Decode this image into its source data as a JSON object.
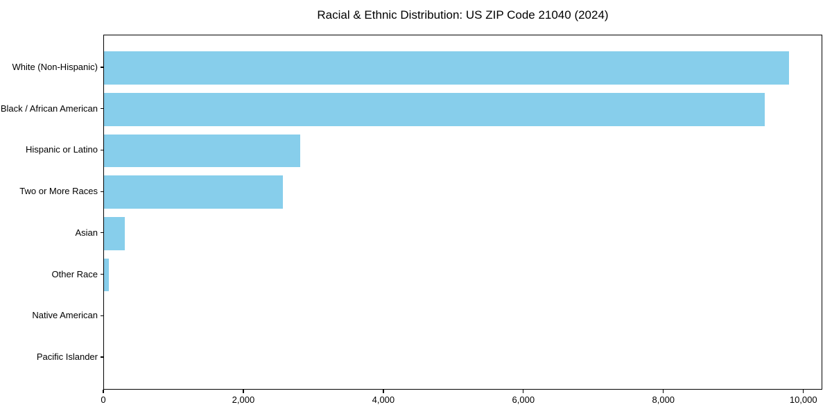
{
  "page": {
    "background_color": "#FFFFFF"
  },
  "chart_data": {
    "type": "bar",
    "orientation": "horizontal",
    "title": "Racial & Ethnic Distribution: US ZIP Code 21040 (2024)",
    "xlabel": "",
    "ylabel": "",
    "categories": [
      "White (Non-Hispanic)",
      "Black / African American",
      "Hispanic or Latino",
      "Two or More Races",
      "Asian",
      "Other Race",
      "Native American",
      "Pacific Islander"
    ],
    "values": [
      9780,
      9440,
      2800,
      2560,
      295,
      65,
      0,
      0
    ],
    "xlim": [
      0,
      10270
    ],
    "x_ticks": [
      {
        "value": 0,
        "label": "0"
      },
      {
        "value": 2000,
        "label": "2,000"
      },
      {
        "value": 4000,
        "label": "4,000"
      },
      {
        "value": 6000,
        "label": "6,000"
      },
      {
        "value": 8000,
        "label": "8,000"
      },
      {
        "value": 10000,
        "label": "10,000"
      }
    ],
    "bar_color": "#87CEEB",
    "axis_color": "#000000",
    "grid": false,
    "legend_position": "none"
  }
}
